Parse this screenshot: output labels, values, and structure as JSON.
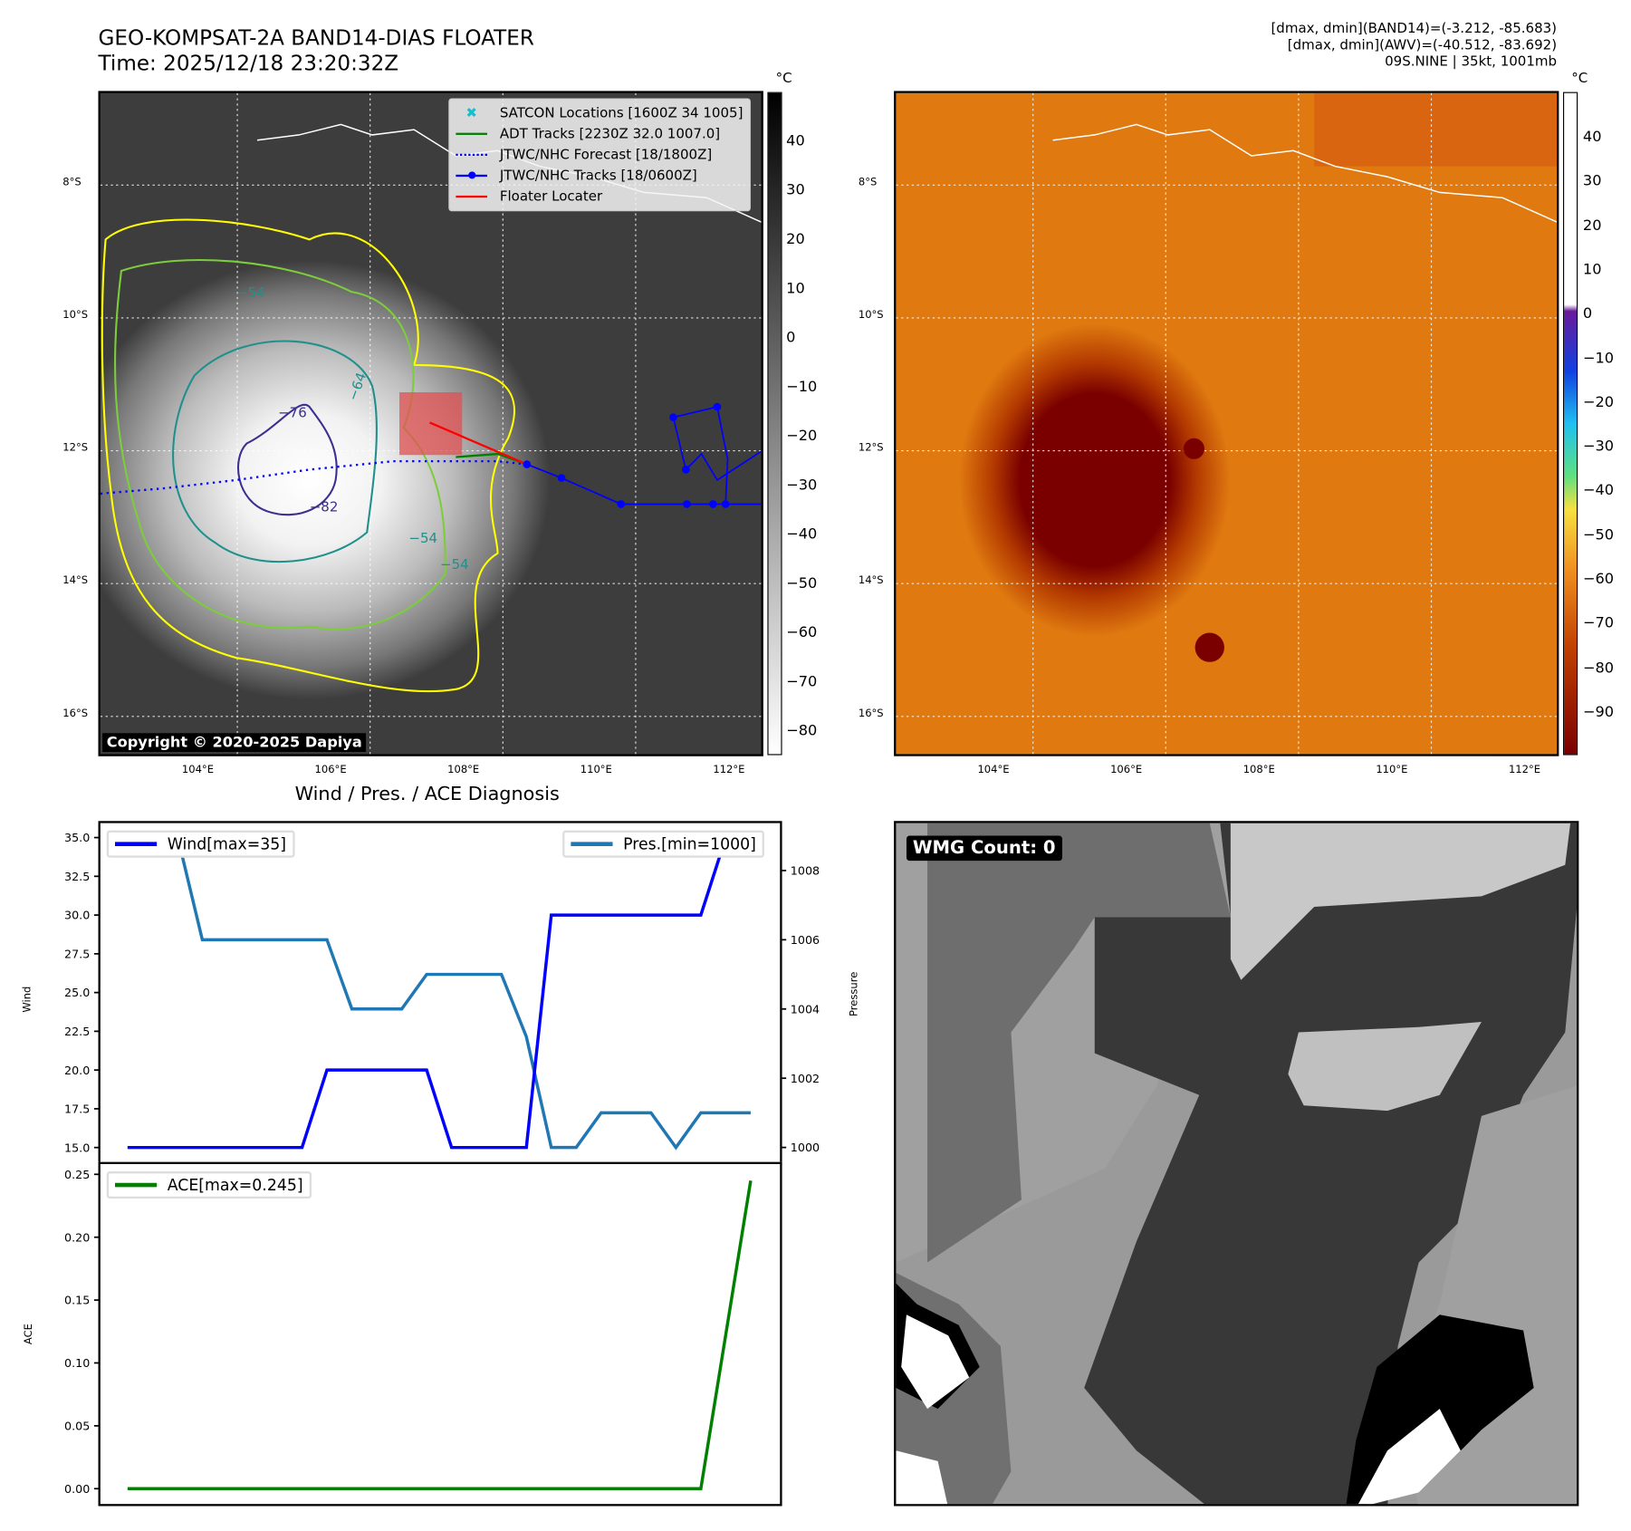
{
  "header": {
    "title_line1": "GEO-KOMPSAT-2A BAND14-DIAS FLOATER",
    "title_line2": "Time: 2025/12/18 23:20:32Z",
    "info_line1": "[dmax, dmin](BAND14)=(-3.212, -85.683)",
    "info_line2": "[dmax, dmin](AWV)=(-40.512, -83.692)",
    "info_line3": "09S.NINE | 35kt, 1001mb"
  },
  "maps": {
    "lat_labels": [
      "8°S",
      "10°S",
      "12°S",
      "14°S",
      "16°S"
    ],
    "lon_labels": [
      "104°E",
      "106°E",
      "108°E",
      "110°E",
      "112°E"
    ],
    "unit": "°C",
    "left_colorbar_ticks": [
      "40",
      "30",
      "20",
      "10",
      "0",
      "−10",
      "−20",
      "−30",
      "−40",
      "−50",
      "−60",
      "−70",
      "−80"
    ],
    "right_colorbar_ticks": [
      "40",
      "30",
      "20",
      "10",
      "0",
      "−10",
      "−20",
      "−30",
      "−40",
      "−50",
      "−60",
      "−70",
      "−80",
      "−90"
    ],
    "contour_labels": [
      "−54",
      "−64",
      "−76",
      "−82",
      "−54",
      "−54"
    ],
    "copyright": "Copyright © 2020-2025 Dapiya",
    "legend": [
      {
        "label": "SATCON Locations [1600Z 34 1005]",
        "color": "#17becf"
      },
      {
        "label": "ADT Tracks [2230Z 32.0 1007.0]",
        "color": "#008000"
      },
      {
        "label": "JTWC/NHC Forecast [18/1800Z]",
        "color": "#0000ff"
      },
      {
        "label": "JTWC/NHC Tracks [18/0600Z]",
        "color": "#0000ff"
      },
      {
        "label": "Floater Locater",
        "color": "#ff0000"
      }
    ]
  },
  "wmg": {
    "label": "WMG Count: 0"
  },
  "chart_data": [
    {
      "type": "line",
      "title": "Wind / Pres. / ACE Diagnosis",
      "xlabel": "",
      "ylabel": "Wind",
      "ylabel_right": "Pressure",
      "ylim": [
        14,
        36
      ],
      "ylim_right": [
        999.55,
        1009.4
      ],
      "yticks": [
        "15.0",
        "17.5",
        "20.0",
        "22.5",
        "25.0",
        "27.5",
        "30.0",
        "32.5",
        "35.0"
      ],
      "yticks_right": [
        "1000",
        "1002",
        "1004",
        "1006",
        "1008"
      ],
      "x": [
        0,
        1,
        2,
        3,
        4,
        5,
        6,
        7,
        8,
        9,
        10,
        11,
        12,
        13,
        14,
        15,
        16,
        17,
        18,
        19,
        20,
        21,
        22,
        23,
        24,
        25
      ],
      "series": [
        {
          "name": "Wind[max=35]",
          "axis": "left",
          "color": "#0000ff",
          "values": [
            15,
            15,
            15,
            15,
            15,
            15,
            15,
            15,
            20,
            20,
            20,
            20,
            20,
            15,
            15,
            15,
            15,
            30,
            30,
            30,
            30,
            30,
            30,
            30,
            35,
            35
          ]
        },
        {
          "name": "Pres.[min=1000]",
          "axis": "right",
          "color": "#1f77b4",
          "values": [
            1009,
            1009,
            1009,
            1006,
            1006,
            1006,
            1006,
            1006,
            1006,
            1004,
            1004,
            1004,
            1005,
            1005,
            1005,
            1005,
            1003.2,
            1000,
            1000,
            1001,
            1001,
            1001,
            1000,
            1001,
            1001,
            1001
          ]
        }
      ],
      "legend": [
        "top-left",
        "top-right"
      ]
    },
    {
      "type": "line",
      "title": "",
      "ylabel": "ACE",
      "ylim": [
        -0.013,
        0.259
      ],
      "yticks": [
        "0.00",
        "0.05",
        "0.10",
        "0.15",
        "0.20",
        "0.25"
      ],
      "x": [
        0,
        1,
        2,
        3,
        4,
        5,
        6,
        7,
        8,
        9,
        10,
        11,
        12,
        13,
        14,
        15,
        16,
        17,
        18,
        19,
        20,
        21,
        22,
        23,
        24,
        25
      ],
      "series": [
        {
          "name": "ACE[max=0.245]",
          "color": "#008000",
          "values": [
            0,
            0,
            0,
            0,
            0,
            0,
            0,
            0,
            0,
            0,
            0,
            0,
            0,
            0,
            0,
            0,
            0,
            0,
            0,
            0,
            0,
            0,
            0,
            0,
            0.1225,
            0.245
          ]
        }
      ],
      "legend": "top-left"
    }
  ]
}
